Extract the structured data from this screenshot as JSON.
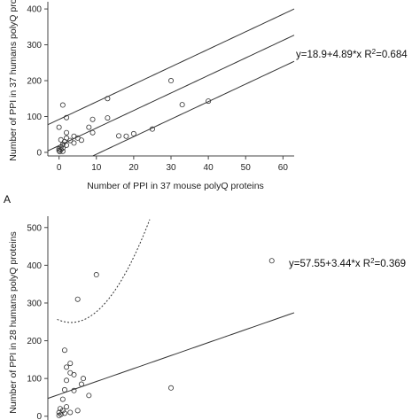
{
  "chart_data": [
    {
      "type": "scatter",
      "panel_label": "",
      "xlabel": "Number of PPI in 37 mouse polyQ proteins",
      "ylabel": "Number of PPI in 37 humans polyQ proteins",
      "xlim": [
        -3,
        63
      ],
      "ylim": [
        -10,
        420
      ],
      "x_ticks": [
        0,
        10,
        20,
        30,
        40,
        50,
        60
      ],
      "y_ticks": [
        0,
        100,
        200,
        300,
        400
      ],
      "equation_label": "y=18.9+4.89*x R",
      "equation_r2": "=0.684",
      "fit": {
        "intercept": 18.9,
        "slope": 4.89
      },
      "band_offset": 73,
      "band_style": "solid",
      "points": [
        {
          "x": 0,
          "y": 5
        },
        {
          "x": 0,
          "y": 10
        },
        {
          "x": 0.2,
          "y": 2
        },
        {
          "x": 0.5,
          "y": 8
        },
        {
          "x": 0.5,
          "y": 15
        },
        {
          "x": 1,
          "y": 3
        },
        {
          "x": 1,
          "y": 12
        },
        {
          "x": 1,
          "y": 22
        },
        {
          "x": 1.5,
          "y": 30
        },
        {
          "x": 0.5,
          "y": 35
        },
        {
          "x": 2,
          "y": 40
        },
        {
          "x": 2,
          "y": 20
        },
        {
          "x": 2,
          "y": 55
        },
        {
          "x": 0,
          "y": 70
        },
        {
          "x": 1,
          "y": 132
        },
        {
          "x": 2,
          "y": 97
        },
        {
          "x": 3,
          "y": 33
        },
        {
          "x": 4,
          "y": 26
        },
        {
          "x": 4,
          "y": 45
        },
        {
          "x": 5,
          "y": 40
        },
        {
          "x": 6,
          "y": 34
        },
        {
          "x": 8,
          "y": 70
        },
        {
          "x": 9,
          "y": 55
        },
        {
          "x": 9,
          "y": 92
        },
        {
          "x": 13,
          "y": 96
        },
        {
          "x": 13,
          "y": 150
        },
        {
          "x": 16,
          "y": 46
        },
        {
          "x": 18,
          "y": 45
        },
        {
          "x": 20,
          "y": 52
        },
        {
          "x": 25,
          "y": 65
        },
        {
          "x": 30,
          "y": 200
        },
        {
          "x": 33,
          "y": 133
        },
        {
          "x": 40,
          "y": 143
        }
      ]
    },
    {
      "type": "scatter",
      "panel_label": "A",
      "xlabel": "",
      "ylabel": "Number of PPI in 28 humans polyQ proteins",
      "xlim": [
        -3,
        63
      ],
      "ylim": [
        -10,
        530
      ],
      "x_ticks": [],
      "y_ticks": [
        0,
        100,
        200,
        300,
        400,
        500
      ],
      "equation_label": "y=57.55+3.44*x R",
      "equation_r2": "=0.369",
      "fit": {
        "intercept": 57.55,
        "slope": 3.44
      },
      "band_style": "dotted",
      "points": [
        {
          "x": 0,
          "y": 2
        },
        {
          "x": 0,
          "y": 10
        },
        {
          "x": 0.3,
          "y": 20
        },
        {
          "x": 0.5,
          "y": 5
        },
        {
          "x": 1,
          "y": 15
        },
        {
          "x": 1,
          "y": 45
        },
        {
          "x": 1.5,
          "y": 8
        },
        {
          "x": 2,
          "y": 25
        },
        {
          "x": 1.5,
          "y": 70
        },
        {
          "x": 2,
          "y": 95
        },
        {
          "x": 2,
          "y": 130
        },
        {
          "x": 1.5,
          "y": 175
        },
        {
          "x": 3,
          "y": 115
        },
        {
          "x": 3,
          "y": 140
        },
        {
          "x": 4,
          "y": 110
        },
        {
          "x": 3,
          "y": 10
        },
        {
          "x": 4,
          "y": 68
        },
        {
          "x": 5,
          "y": 15
        },
        {
          "x": 5,
          "y": 310
        },
        {
          "x": 6,
          "y": 85
        },
        {
          "x": 6.5,
          "y": 100
        },
        {
          "x": 8,
          "y": 55
        },
        {
          "x": 10,
          "y": 375
        },
        {
          "x": 30,
          "y": 75
        },
        {
          "x": 57,
          "y": 412
        }
      ]
    }
  ]
}
